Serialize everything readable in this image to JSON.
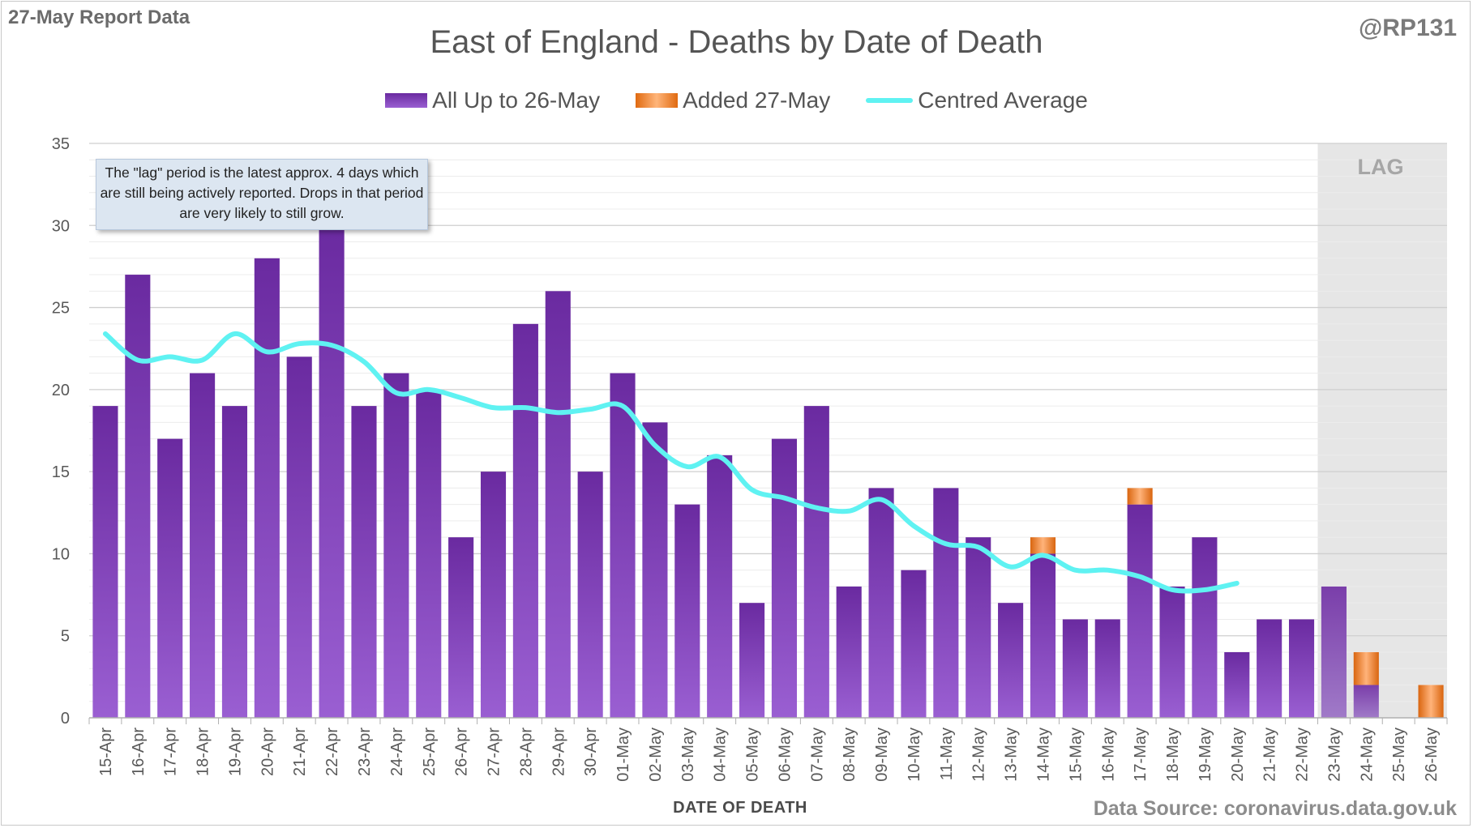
{
  "header": {
    "report_label": "27-May Report Data",
    "handle": "@RP131",
    "title": "East of England - Deaths by Date of Death"
  },
  "legend": [
    {
      "label": "All Up to 26-May",
      "swatch": "purple-bar"
    },
    {
      "label": "Added 27-May",
      "swatch": "orange-bar"
    },
    {
      "label": "Centred Average",
      "swatch": "cyan-line"
    }
  ],
  "annotation": "The \"lag\" period is the latest approx. 4 days which are still being actively reported. Drops in that period are very likely to still grow.",
  "lag_label": "LAG",
  "source": "Data Source: coronavirus.data.gov.uk",
  "colors": {
    "base_bar_top": "#6a2aa0",
    "base_bar_bottom": "#9a5fd2",
    "added_bar": "#e0782a",
    "average_line": "#5ff2f2",
    "lag_shading": "#e6e6e6"
  },
  "chart_data": {
    "type": "bar",
    "title": "East of England - Deaths by Date of Death",
    "xlabel": "DATE OF DEATH",
    "ylabel": "",
    "ylim": [
      0,
      35
    ],
    "yticks": [
      0,
      5,
      10,
      15,
      20,
      25,
      30,
      35
    ],
    "grid": true,
    "stacked": true,
    "legend_position": "top",
    "categories": [
      "15-Apr",
      "16-Apr",
      "17-Apr",
      "18-Apr",
      "19-Apr",
      "20-Apr",
      "21-Apr",
      "22-Apr",
      "23-Apr",
      "24-Apr",
      "25-Apr",
      "26-Apr",
      "27-Apr",
      "28-Apr",
      "29-Apr",
      "30-Apr",
      "01-May",
      "02-May",
      "03-May",
      "04-May",
      "05-May",
      "06-May",
      "07-May",
      "08-May",
      "09-May",
      "10-May",
      "11-May",
      "12-May",
      "13-May",
      "14-May",
      "15-May",
      "16-May",
      "17-May",
      "18-May",
      "19-May",
      "20-May",
      "21-May",
      "22-May",
      "23-May",
      "24-May",
      "25-May",
      "26-May"
    ],
    "series": [
      {
        "name": "All Up to 26-May",
        "values": [
          19,
          27,
          17,
          21,
          19,
          28,
          22,
          30,
          19,
          21,
          20,
          11,
          15,
          24,
          26,
          15,
          21,
          18,
          13,
          16,
          7,
          17,
          19,
          8,
          14,
          9,
          14,
          11,
          7,
          10,
          6,
          6,
          13,
          8,
          11,
          4,
          6,
          6,
          8,
          2,
          0,
          0
        ]
      },
      {
        "name": "Added 27-May",
        "values": [
          0,
          0,
          0,
          0,
          0,
          0,
          0,
          0,
          0,
          0,
          0,
          0,
          0,
          0,
          0,
          0,
          0,
          0,
          0,
          0,
          0,
          0,
          0,
          0,
          0,
          0,
          0,
          0,
          0,
          1,
          0,
          0,
          1,
          0,
          0,
          0,
          0,
          0,
          0,
          2,
          0,
          2
        ]
      },
      {
        "name": "Centred Average",
        "type": "line",
        "values": [
          23.4,
          21.8,
          22.0,
          21.8,
          23.4,
          22.3,
          22.8,
          22.7,
          21.7,
          19.8,
          20.0,
          19.5,
          18.9,
          18.9,
          18.6,
          18.8,
          19.0,
          16.6,
          15.3,
          15.9,
          13.9,
          13.4,
          12.8,
          12.6,
          13.3,
          11.7,
          10.6,
          10.4,
          9.2,
          9.9,
          9.0,
          9.0,
          8.6,
          7.8,
          7.8,
          8.2,
          null,
          null,
          null,
          null,
          null,
          null
        ]
      }
    ],
    "lag_period": [
      "23-May",
      "26-May"
    ]
  }
}
